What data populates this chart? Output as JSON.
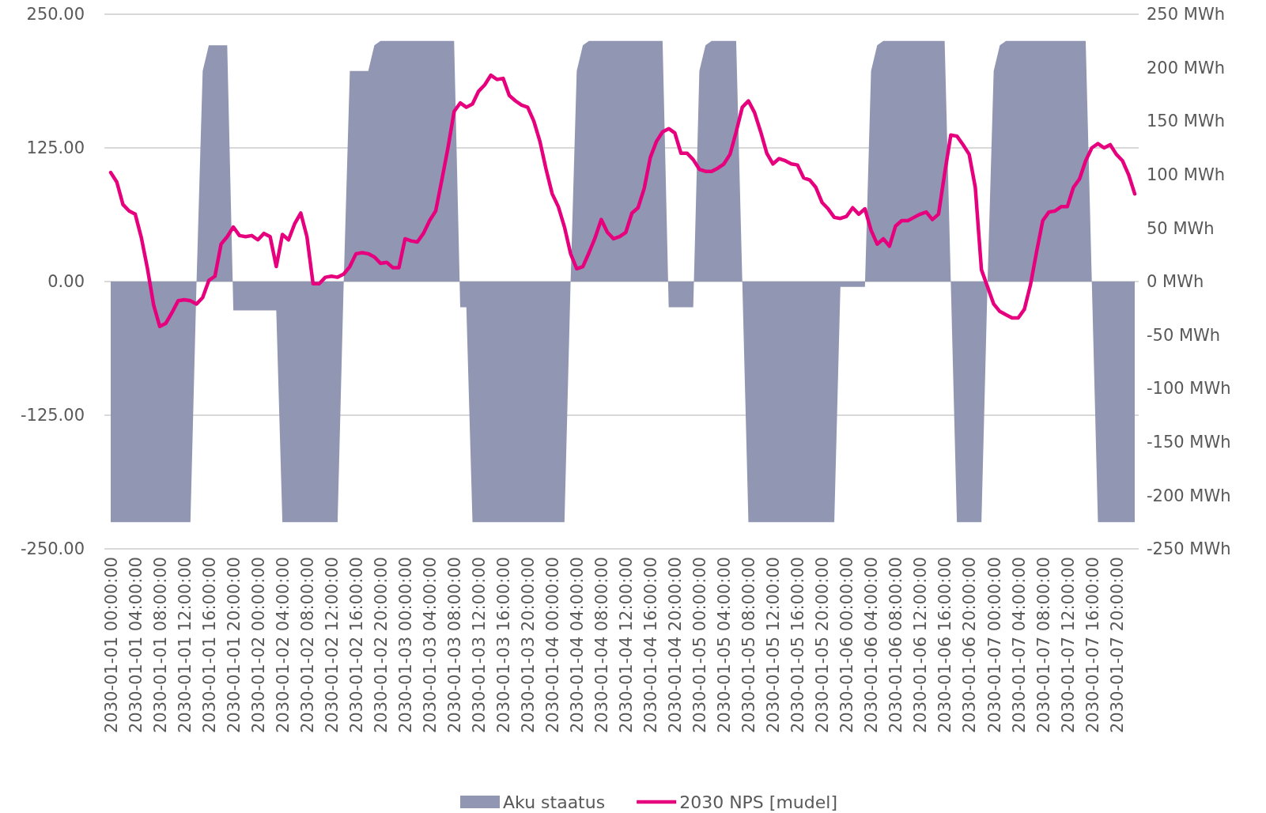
{
  "chart_data": {
    "type": "area",
    "categories": [
      "2030-01-01 00:00:00",
      null,
      null,
      null,
      "2030-01-01 04:00:00",
      null,
      null,
      null,
      "2030-01-01 08:00:00",
      null,
      null,
      null,
      "2030-01-01 12:00:00",
      null,
      null,
      null,
      "2030-01-01 16:00:00",
      null,
      null,
      null,
      "2030-01-01 20:00:00",
      null,
      null,
      null,
      "2030-01-02 00:00:00",
      null,
      null,
      null,
      "2030-01-02 04:00:00",
      null,
      null,
      null,
      "2030-01-02 08:00:00",
      null,
      null,
      null,
      "2030-01-02 12:00:00",
      null,
      null,
      null,
      "2030-01-02 16:00:00",
      null,
      null,
      null,
      "2030-01-02 20:00:00",
      null,
      null,
      null,
      "2030-01-03 00:00:00",
      null,
      null,
      null,
      "2030-01-03 04:00:00",
      null,
      null,
      null,
      "2030-01-03 08:00:00",
      null,
      null,
      null,
      "2030-01-03 12:00:00",
      null,
      null,
      null,
      "2030-01-03 16:00:00",
      null,
      null,
      null,
      "2030-01-03 20:00:00",
      null,
      null,
      null,
      "2030-01-04 00:00:00",
      null,
      null,
      null,
      "2030-01-04 04:00:00",
      null,
      null,
      null,
      "2030-01-04 08:00:00",
      null,
      null,
      null,
      "2030-01-04 12:00:00",
      null,
      null,
      null,
      "2030-01-04 16:00:00",
      null,
      null,
      null,
      "2030-01-04 20:00:00",
      null,
      null,
      null,
      "2030-01-05 00:00:00",
      null,
      null,
      null,
      "2030-01-05 04:00:00",
      null,
      null,
      null,
      "2030-01-05 08:00:00",
      null,
      null,
      null,
      "2030-01-05 12:00:00",
      null,
      null,
      null,
      "2030-01-05 16:00:00",
      null,
      null,
      null,
      "2030-01-05 20:00:00",
      null,
      null,
      null,
      "2030-01-06 00:00:00",
      null,
      null,
      null,
      "2030-01-06 04:00:00",
      null,
      null,
      null,
      "2030-01-06 08:00:00",
      null,
      null,
      null,
      "2030-01-06 12:00:00",
      null,
      null,
      null,
      "2030-01-06 16:00:00",
      null,
      null,
      null,
      "2030-01-06 20:00:00",
      null,
      null,
      null,
      "2030-01-07 00:00:00",
      null,
      null,
      null,
      "2030-01-07 04:00:00",
      null,
      null,
      null,
      "2030-01-07 08:00:00",
      null,
      null,
      null,
      "2030-01-07 12:00:00",
      null,
      null,
      null,
      "2030-01-07 16:00:00",
      null,
      null,
      null,
      "2030-01-07 20:00:00",
      null,
      null,
      null
    ],
    "series": [
      {
        "name": "Aku staatus",
        "color": "#9196b2",
        "values": [
          -225,
          -225,
          -225,
          -225,
          -225,
          -225,
          -225,
          -225,
          -225,
          -225,
          -225,
          -225,
          -225,
          -225,
          0,
          197,
          221,
          221,
          221,
          221,
          -27,
          -27,
          -27,
          -27,
          -27,
          -27,
          -27,
          -27,
          -225,
          -225,
          -225,
          -225,
          -225,
          -225,
          -225,
          -225,
          -225,
          -225,
          0,
          197,
          197,
          197,
          197,
          221,
          225,
          225,
          225,
          225,
          225,
          225,
          225,
          225,
          225,
          225,
          225,
          225,
          225,
          -24,
          -24,
          -225,
          -225,
          -225,
          -225,
          -225,
          -225,
          -225,
          -225,
          -225,
          -225,
          -225,
          -225,
          -225,
          -225,
          -225,
          -225,
          0,
          197,
          221,
          225,
          225,
          225,
          225,
          225,
          225,
          225,
          225,
          225,
          225,
          225,
          225,
          225,
          -24,
          -24,
          -24,
          -24,
          -24,
          197,
          221,
          225,
          225,
          225,
          225,
          225,
          0,
          -225,
          -225,
          -225,
          -225,
          -225,
          -225,
          -225,
          -225,
          -225,
          -225,
          -225,
          -225,
          -225,
          -225,
          -225,
          -5,
          -5,
          -5,
          -5,
          -5,
          197,
          221,
          225,
          225,
          225,
          225,
          225,
          225,
          225,
          225,
          225,
          225,
          225,
          0,
          -225,
          -225,
          -225,
          -225,
          -225,
          0,
          197,
          221,
          225,
          225,
          225,
          225,
          225,
          225,
          225,
          225,
          225,
          225,
          225,
          225,
          225,
          225,
          0,
          -225,
          -225,
          -225,
          -225,
          -225,
          -225,
          -225
        ]
      },
      {
        "name": "2030 NPS [mudel]",
        "type": "line",
        "color": "#e6007e",
        "values": [
          102,
          93,
          72,
          66,
          63,
          41,
          12,
          -22,
          -42,
          -39,
          -29,
          -18,
          -17,
          -18,
          -21,
          -15,
          1,
          5,
          35,
          42,
          51,
          43,
          42,
          43,
          39,
          45,
          42,
          14,
          44,
          39,
          54,
          64,
          42,
          -2,
          -2,
          4,
          5,
          4,
          7,
          14,
          26,
          27,
          26,
          23,
          17,
          18,
          13,
          13,
          40,
          38,
          37,
          45,
          57,
          66,
          95,
          125,
          159,
          167,
          163,
          166,
          178,
          184,
          193,
          189,
          190,
          174,
          169,
          165,
          163,
          150,
          131,
          105,
          82,
          70,
          51,
          26,
          12,
          14,
          27,
          41,
          58,
          46,
          40,
          42,
          46,
          64,
          69,
          87,
          116,
          131,
          140,
          143,
          139,
          120,
          120,
          114,
          105,
          103,
          103,
          106,
          110,
          119,
          140,
          163,
          169,
          158,
          140,
          120,
          110,
          115,
          113,
          110,
          109,
          97,
          95,
          88,
          74,
          68,
          60,
          59,
          61,
          69,
          63,
          68,
          48,
          35,
          40,
          33,
          52,
          57,
          57,
          60,
          63,
          65,
          58,
          63,
          101,
          137,
          136,
          128,
          119,
          88,
          11,
          -5,
          -21,
          -28,
          -31,
          -34,
          -34,
          -26,
          -3,
          28,
          57,
          65,
          66,
          70,
          70,
          88,
          96,
          113,
          125,
          129,
          125,
          128,
          119,
          113,
          100,
          82
        ]
      }
    ],
    "ylim": [
      -250,
      250
    ],
    "yticks": [
      {
        "value": -250,
        "label": "-250.00"
      },
      {
        "value": -125,
        "label": "-125.00"
      },
      {
        "value": 0,
        "label": "0.00"
      },
      {
        "value": 125,
        "label": "125.00"
      },
      {
        "value": 250,
        "label": "250.00"
      }
    ],
    "y2lim": [
      -250,
      250
    ],
    "y2ticks": [
      {
        "value": -250,
        "label": "-250 MWh"
      },
      {
        "value": -200,
        "label": "-200 MWh"
      },
      {
        "value": -150,
        "label": "-150 MWh"
      },
      {
        "value": -100,
        "label": "-100 MWh"
      },
      {
        "value": -50,
        "label": "-50 MWh"
      },
      {
        "value": 0,
        "label": "0 MWh"
      },
      {
        "value": 50,
        "label": "50 MWh"
      },
      {
        "value": 100,
        "label": "100 MWh"
      },
      {
        "value": 150,
        "label": "150 MWh"
      },
      {
        "value": 200,
        "label": "200 MWh"
      },
      {
        "value": 250,
        "label": "250 MWh"
      }
    ],
    "grid": "y",
    "legend": "bottom",
    "marker": "none",
    "line_style": "solid"
  }
}
